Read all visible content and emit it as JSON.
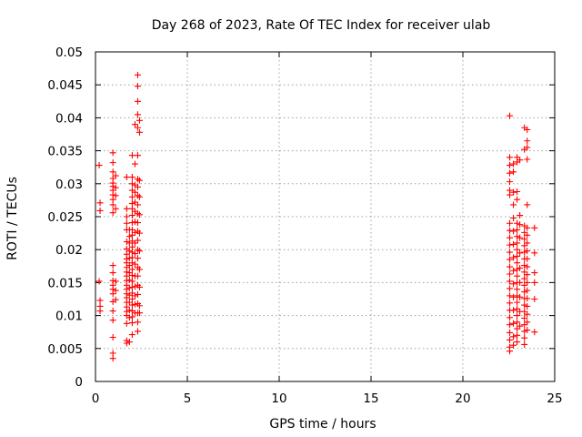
{
  "chart_data": {
    "type": "scatter",
    "title": "Day 268 of 2023, Rate Of TEC Index for receiver ulab",
    "xlabel": "GPS time / hours",
    "ylabel": "ROTI / TECUs",
    "xlim": [
      0,
      25
    ],
    "ylim": [
      0,
      0.05
    ],
    "xticks": [
      0,
      5,
      10,
      15,
      20,
      25
    ],
    "yticks": [
      0,
      0.005,
      0.01,
      0.015,
      0.02,
      0.025,
      0.03,
      0.035,
      0.04,
      0.045,
      0.05
    ],
    "ytick_labels": [
      "0",
      "0.005",
      "0.01",
      "0.015",
      "0.02",
      "0.025",
      "0.03",
      "0.035",
      "0.04",
      "0.045",
      "0.05"
    ],
    "grid": true,
    "marker": "+",
    "color": "#ff0000",
    "series": [
      {
        "points": [
          [
            0.2,
            0.0328
          ],
          [
            0.25,
            0.0271
          ],
          [
            0.25,
            0.0259
          ],
          [
            0.2,
            0.0152
          ],
          [
            0.25,
            0.0123
          ],
          [
            0.25,
            0.0114
          ],
          [
            0.25,
            0.0107
          ],
          [
            0.95,
            0.0347
          ],
          [
            0.95,
            0.0332
          ],
          [
            0.95,
            0.0318
          ],
          [
            0.95,
            0.0308
          ],
          [
            0.95,
            0.0301
          ],
          [
            0.95,
            0.0296
          ],
          [
            0.95,
            0.029
          ],
          [
            0.95,
            0.0283
          ],
          [
            0.95,
            0.0276
          ],
          [
            0.95,
            0.0268
          ],
          [
            0.95,
            0.0256
          ],
          [
            0.95,
            0.0176
          ],
          [
            0.95,
            0.0165
          ],
          [
            0.95,
            0.0153
          ],
          [
            0.95,
            0.0146
          ],
          [
            0.95,
            0.014
          ],
          [
            0.95,
            0.0133
          ],
          [
            0.95,
            0.0121
          ],
          [
            0.95,
            0.0107
          ],
          [
            0.95,
            0.0093
          ],
          [
            0.95,
            0.0067
          ],
          [
            0.95,
            0.0043
          ],
          [
            0.95,
            0.0035
          ],
          [
            1.1,
            0.0312
          ],
          [
            1.1,
            0.0294
          ],
          [
            1.1,
            0.0282
          ],
          [
            1.1,
            0.0262
          ],
          [
            1.1,
            0.0152
          ],
          [
            1.1,
            0.0138
          ],
          [
            1.1,
            0.0124
          ],
          [
            1.7,
            0.031
          ],
          [
            1.7,
            0.0262
          ],
          [
            1.7,
            0.025
          ],
          [
            1.7,
            0.024
          ],
          [
            1.7,
            0.023
          ],
          [
            1.7,
            0.0212
          ],
          [
            1.7,
            0.0201
          ],
          [
            1.7,
            0.0193
          ],
          [
            1.7,
            0.0186
          ],
          [
            1.7,
            0.018
          ],
          [
            1.7,
            0.0173
          ],
          [
            1.7,
            0.0166
          ],
          [
            1.7,
            0.016
          ],
          [
            1.7,
            0.0153
          ],
          [
            1.7,
            0.0146
          ],
          [
            1.7,
            0.014
          ],
          [
            1.7,
            0.0133
          ],
          [
            1.7,
            0.0127
          ],
          [
            1.7,
            0.012
          ],
          [
            1.7,
            0.0113
          ],
          [
            1.7,
            0.0106
          ],
          [
            1.7,
            0.01
          ],
          [
            1.7,
            0.0088
          ],
          [
            1.7,
            0.0062
          ],
          [
            1.7,
            0.0058
          ],
          [
            1.85,
            0.023
          ],
          [
            1.85,
            0.022
          ],
          [
            1.85,
            0.021
          ],
          [
            1.85,
            0.0198
          ],
          [
            1.85,
            0.0187
          ],
          [
            1.85,
            0.0176
          ],
          [
            1.85,
            0.0165
          ],
          [
            1.85,
            0.0154
          ],
          [
            1.85,
            0.0142
          ],
          [
            1.85,
            0.0131
          ],
          [
            1.85,
            0.012
          ],
          [
            1.85,
            0.0108
          ],
          [
            1.85,
            0.0097
          ],
          [
            1.85,
            0.006
          ],
          [
            2.0,
            0.0343
          ],
          [
            2.0,
            0.031
          ],
          [
            2.0,
            0.03
          ],
          [
            2.0,
            0.029
          ],
          [
            2.0,
            0.028
          ],
          [
            2.0,
            0.027
          ],
          [
            2.0,
            0.0262
          ],
          [
            2.0,
            0.0252
          ],
          [
            2.0,
            0.0241
          ],
          [
            2.0,
            0.023
          ],
          [
            2.0,
            0.0222
          ],
          [
            2.0,
            0.0213
          ],
          [
            2.0,
            0.0204
          ],
          [
            2.0,
            0.0196
          ],
          [
            2.0,
            0.0188
          ],
          [
            2.0,
            0.018
          ],
          [
            2.0,
            0.017
          ],
          [
            2.0,
            0.0161
          ],
          [
            2.0,
            0.0152
          ],
          [
            2.0,
            0.0143
          ],
          [
            2.0,
            0.0134
          ],
          [
            2.0,
            0.0125
          ],
          [
            2.0,
            0.0116
          ],
          [
            2.0,
            0.0107
          ],
          [
            2.0,
            0.0098
          ],
          [
            2.0,
            0.0089
          ],
          [
            2.0,
            0.0071
          ],
          [
            2.15,
            0.039
          ],
          [
            2.15,
            0.033
          ],
          [
            2.15,
            0.0298
          ],
          [
            2.15,
            0.0287
          ],
          [
            2.15,
            0.0272
          ],
          [
            2.15,
            0.0258
          ],
          [
            2.15,
            0.0242
          ],
          [
            2.15,
            0.0226
          ],
          [
            2.15,
            0.021
          ],
          [
            2.15,
            0.0194
          ],
          [
            2.15,
            0.0178
          ],
          [
            2.15,
            0.016
          ],
          [
            2.15,
            0.0144
          ],
          [
            2.15,
            0.013
          ],
          [
            2.15,
            0.0117
          ],
          [
            2.15,
            0.0104
          ],
          [
            2.3,
            0.0465
          ],
          [
            2.3,
            0.0448
          ],
          [
            2.3,
            0.0425
          ],
          [
            2.3,
            0.0405
          ],
          [
            2.3,
            0.0385
          ],
          [
            2.3,
            0.0343
          ],
          [
            2.3,
            0.0307
          ],
          [
            2.3,
            0.0295
          ],
          [
            2.3,
            0.0282
          ],
          [
            2.3,
            0.0268
          ],
          [
            2.3,
            0.0255
          ],
          [
            2.3,
            0.0241
          ],
          [
            2.3,
            0.0228
          ],
          [
            2.3,
            0.0214
          ],
          [
            2.3,
            0.02
          ],
          [
            2.3,
            0.0187
          ],
          [
            2.3,
            0.0173
          ],
          [
            2.3,
            0.016
          ],
          [
            2.3,
            0.0146
          ],
          [
            2.3,
            0.0132
          ],
          [
            2.3,
            0.0118
          ],
          [
            2.3,
            0.0104
          ],
          [
            2.3,
            0.009
          ],
          [
            2.3,
            0.0076
          ],
          [
            2.4,
            0.0396
          ],
          [
            2.4,
            0.0378
          ],
          [
            2.4,
            0.0305
          ],
          [
            2.4,
            0.028
          ],
          [
            2.4,
            0.0253
          ],
          [
            2.4,
            0.0225
          ],
          [
            2.4,
            0.0198
          ],
          [
            2.4,
            0.017
          ],
          [
            2.4,
            0.0143
          ],
          [
            2.4,
            0.0115
          ],
          [
            2.4,
            0.0104
          ],
          [
            22.55,
            0.0403
          ],
          [
            22.55,
            0.034
          ],
          [
            22.55,
            0.0328
          ],
          [
            22.55,
            0.0316
          ],
          [
            22.55,
            0.0303
          ],
          [
            22.55,
            0.029
          ],
          [
            22.55,
            0.0283
          ],
          [
            22.55,
            0.024
          ],
          [
            22.55,
            0.0229
          ],
          [
            22.55,
            0.0218
          ],
          [
            22.55,
            0.0207
          ],
          [
            22.55,
            0.0196
          ],
          [
            22.55,
            0.0185
          ],
          [
            22.55,
            0.0174
          ],
          [
            22.55,
            0.0163
          ],
          [
            22.55,
            0.0152
          ],
          [
            22.55,
            0.0141
          ],
          [
            22.55,
            0.013
          ],
          [
            22.55,
            0.0119
          ],
          [
            22.55,
            0.0108
          ],
          [
            22.55,
            0.0097
          ],
          [
            22.55,
            0.0086
          ],
          [
            22.55,
            0.0074
          ],
          [
            22.55,
            0.0063
          ],
          [
            22.55,
            0.0052
          ],
          [
            22.55,
            0.0046
          ],
          [
            22.75,
            0.033
          ],
          [
            22.75,
            0.0318
          ],
          [
            22.75,
            0.0287
          ],
          [
            22.75,
            0.0268
          ],
          [
            22.75,
            0.0248
          ],
          [
            22.75,
            0.0228
          ],
          [
            22.75,
            0.0208
          ],
          [
            22.75,
            0.0188
          ],
          [
            22.75,
            0.0168
          ],
          [
            22.75,
            0.0148
          ],
          [
            22.75,
            0.0128
          ],
          [
            22.75,
            0.0108
          ],
          [
            22.75,
            0.0088
          ],
          [
            22.75,
            0.0068
          ],
          [
            22.75,
            0.0055
          ],
          [
            22.95,
            0.034
          ],
          [
            22.95,
            0.0333
          ],
          [
            22.95,
            0.0288
          ],
          [
            22.95,
            0.0276
          ],
          [
            22.95,
            0.024
          ],
          [
            22.95,
            0.023
          ],
          [
            22.95,
            0.022
          ],
          [
            22.95,
            0.021
          ],
          [
            22.95,
            0.02
          ],
          [
            22.95,
            0.019
          ],
          [
            22.95,
            0.018
          ],
          [
            22.95,
            0.017
          ],
          [
            22.95,
            0.016
          ],
          [
            22.95,
            0.015
          ],
          [
            22.95,
            0.014
          ],
          [
            22.95,
            0.013
          ],
          [
            22.95,
            0.012
          ],
          [
            22.95,
            0.011
          ],
          [
            22.95,
            0.01
          ],
          [
            22.95,
            0.009
          ],
          [
            22.95,
            0.008
          ],
          [
            22.95,
            0.007
          ],
          [
            22.95,
            0.006
          ],
          [
            23.1,
            0.0336
          ],
          [
            23.1,
            0.0252
          ],
          [
            23.1,
            0.0238
          ],
          [
            23.1,
            0.0218
          ],
          [
            23.1,
            0.0195
          ],
          [
            23.1,
            0.0172
          ],
          [
            23.1,
            0.015
          ],
          [
            23.1,
            0.0128
          ],
          [
            23.1,
            0.0106
          ],
          [
            23.1,
            0.0084
          ],
          [
            23.35,
            0.0385
          ],
          [
            23.35,
            0.0352
          ],
          [
            23.35,
            0.0236
          ],
          [
            23.35,
            0.0226
          ],
          [
            23.35,
            0.0216
          ],
          [
            23.35,
            0.0206
          ],
          [
            23.35,
            0.0196
          ],
          [
            23.35,
            0.0186
          ],
          [
            23.35,
            0.0176
          ],
          [
            23.35,
            0.0166
          ],
          [
            23.35,
            0.0156
          ],
          [
            23.35,
            0.0146
          ],
          [
            23.35,
            0.0136
          ],
          [
            23.35,
            0.0126
          ],
          [
            23.35,
            0.0116
          ],
          [
            23.35,
            0.0106
          ],
          [
            23.35,
            0.0096
          ],
          [
            23.35,
            0.0086
          ],
          [
            23.35,
            0.0076
          ],
          [
            23.35,
            0.0066
          ],
          [
            23.35,
            0.0056
          ],
          [
            23.5,
            0.0382
          ],
          [
            23.5,
            0.0365
          ],
          [
            23.5,
            0.0355
          ],
          [
            23.5,
            0.0337
          ],
          [
            23.5,
            0.0268
          ],
          [
            23.5,
            0.0233
          ],
          [
            23.5,
            0.0222
          ],
          [
            23.5,
            0.021
          ],
          [
            23.5,
            0.0198
          ],
          [
            23.5,
            0.0186
          ],
          [
            23.5,
            0.0174
          ],
          [
            23.5,
            0.0162
          ],
          [
            23.5,
            0.015
          ],
          [
            23.5,
            0.0138
          ],
          [
            23.5,
            0.0126
          ],
          [
            23.5,
            0.0114
          ],
          [
            23.5,
            0.0102
          ],
          [
            23.5,
            0.009
          ],
          [
            23.5,
            0.0078
          ],
          [
            23.9,
            0.0233
          ],
          [
            23.9,
            0.0195
          ],
          [
            23.9,
            0.0165
          ],
          [
            23.9,
            0.015
          ],
          [
            23.9,
            0.0125
          ],
          [
            23.9,
            0.0075
          ]
        ]
      }
    ]
  }
}
